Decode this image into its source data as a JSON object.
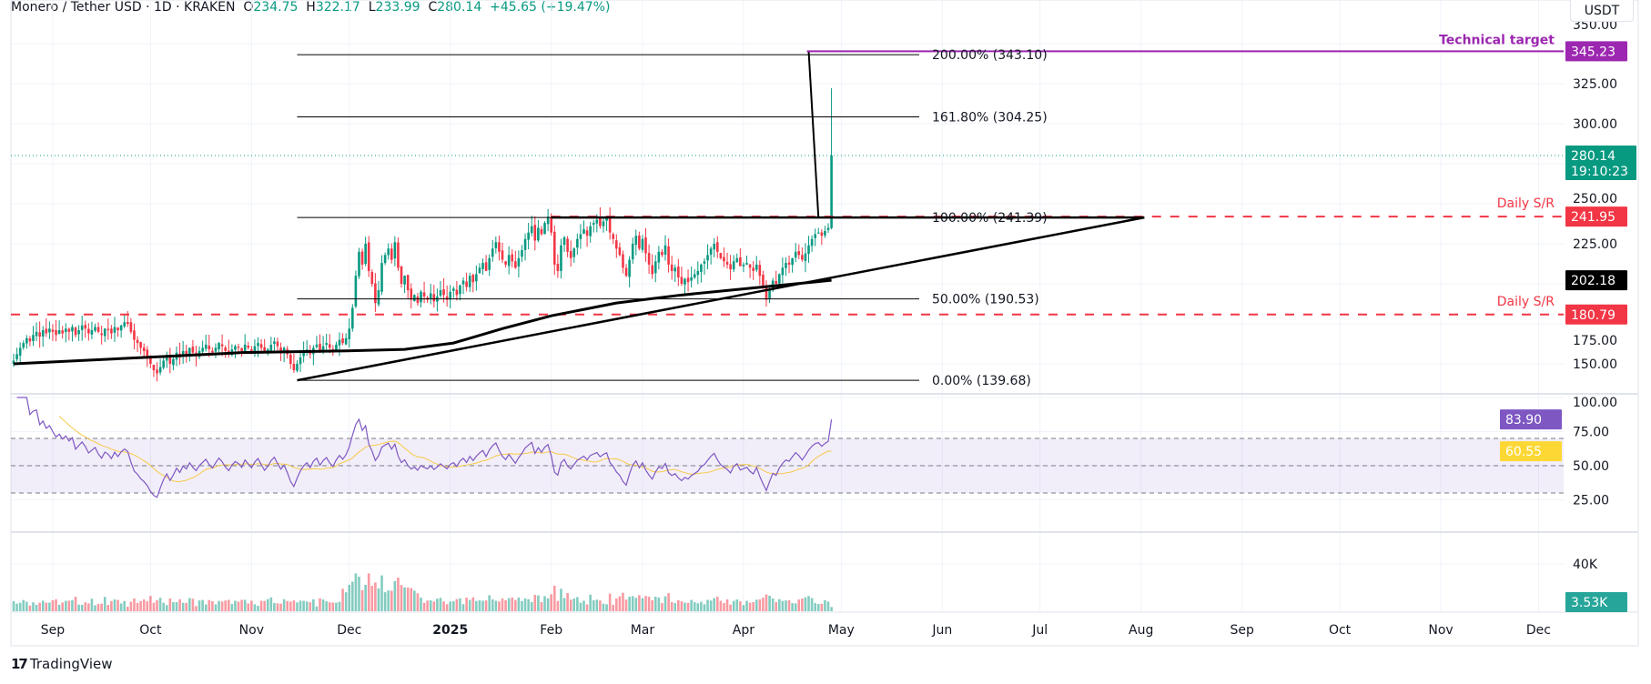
{
  "header": {
    "symbol": "Monero / Tether USD · 1D · KRAKEN",
    "o_label": "O",
    "o": "234.75",
    "h_label": "H",
    "h": "322.17",
    "l_label": "L",
    "l": "233.99",
    "c_label": "C",
    "c": "280.14",
    "change": "+45.65 (+19.47%)"
  },
  "currency": "USDT",
  "branding": "TradingView",
  "chart_data": {
    "type": "candlestick",
    "title": "Monero / Tether USD · 1D · KRAKEN",
    "start_date": "2024-08-20",
    "closes": [
      152,
      156,
      160,
      163,
      166,
      164,
      168,
      170,
      167,
      171,
      169,
      172,
      170,
      168,
      171,
      169,
      172,
      170,
      173,
      168,
      171,
      174,
      172,
      169,
      171,
      173,
      170,
      168,
      172,
      171,
      169,
      173,
      171,
      174,
      176,
      175,
      170,
      165,
      163,
      160,
      158,
      155,
      150,
      146,
      144,
      148,
      152,
      155,
      150,
      153,
      157,
      154,
      158,
      156,
      160,
      157,
      155,
      158,
      160,
      162,
      159,
      157,
      160,
      163,
      161,
      158,
      156,
      159,
      161,
      160,
      158,
      162,
      160,
      158,
      161,
      163,
      160,
      157,
      159,
      162,
      164,
      161,
      158,
      160,
      156,
      150,
      146,
      150,
      154,
      157,
      159,
      156,
      160,
      162,
      158,
      161,
      163,
      160,
      158,
      162,
      165,
      163,
      166,
      172,
      185,
      205,
      220,
      212,
      225,
      208,
      200,
      188,
      196,
      213,
      218,
      222,
      215,
      226,
      210,
      200,
      205,
      196,
      190,
      193,
      188,
      195,
      192,
      190,
      194,
      189,
      192,
      196,
      193,
      190,
      195,
      197,
      193,
      199,
      202,
      198,
      205,
      201,
      206,
      210,
      213,
      208,
      216,
      222,
      226,
      220,
      215,
      212,
      218,
      214,
      210,
      216,
      221,
      228,
      232,
      236,
      227,
      235,
      231,
      238,
      242,
      232,
      212,
      208,
      224,
      229,
      220,
      216,
      222,
      228,
      231,
      234,
      230,
      236,
      238,
      240,
      236,
      239,
      241,
      232,
      228,
      222,
      218,
      210,
      205,
      215,
      225,
      230,
      222,
      228,
      219,
      212,
      206,
      214,
      220,
      218,
      224,
      212,
      208,
      210,
      204,
      200,
      203,
      201,
      204,
      206,
      208,
      212,
      214,
      218,
      222,
      225,
      220,
      216,
      214,
      212,
      209,
      214,
      216,
      211,
      212,
      213,
      210,
      208,
      212,
      205,
      198,
      190,
      196,
      202,
      200,
      206,
      210,
      213,
      212,
      216,
      220,
      218,
      215,
      219,
      224,
      228,
      231,
      232,
      230,
      233,
      235,
      280
    ],
    "last_candle": {
      "open": 234.75,
      "high": 322.17,
      "low": 233.99,
      "close": 280.14,
      "volume": 3530
    },
    "moving_average_200": [
      [
        0,
        150
      ],
      [
        40,
        154
      ],
      [
        70,
        157
      ],
      [
        100,
        158
      ],
      [
        120,
        159
      ],
      [
        135,
        163
      ],
      [
        150,
        172
      ],
      [
        165,
        180
      ],
      [
        185,
        188
      ],
      [
        205,
        193
      ],
      [
        225,
        197
      ],
      [
        240,
        200
      ],
      [
        251,
        202.18
      ]
    ],
    "price_axis": {
      "ticks": [
        "350.00",
        "325.00",
        "300.00",
        "250.00",
        "225.00",
        "175.00",
        "150.00"
      ],
      "tick_values": [
        350,
        325,
        300,
        250,
        225,
        175,
        150
      ]
    },
    "time_axis": [
      {
        "label": "Sep",
        "day": 12
      },
      {
        "label": "Oct",
        "day": 42
      },
      {
        "label": "Nov",
        "day": 73
      },
      {
        "label": "Dec",
        "day": 103
      },
      {
        "label": "2025",
        "day": 134,
        "bold": true
      },
      {
        "label": "Feb",
        "day": 165
      },
      {
        "label": "Mar",
        "day": 193
      },
      {
        "label": "Apr",
        "day": 224
      },
      {
        "label": "May",
        "day": 254
      },
      {
        "label": "Jun",
        "day": 285
      },
      {
        "label": "Jul",
        "day": 315
      },
      {
        "label": "Aug",
        "day": 346
      },
      {
        "label": "Sep",
        "day": 377
      },
      {
        "label": "Oct",
        "day": 407
      },
      {
        "label": "Nov",
        "day": 438
      },
      {
        "label": "Dec",
        "day": 468
      }
    ],
    "fibonacci": [
      {
        "label": "200.00% (343.10)",
        "value": 343.1
      },
      {
        "label": "161.80% (304.25)",
        "value": 304.25
      },
      {
        "label": "100.00% (241.39)",
        "value": 241.39
      },
      {
        "label": "50.00% (190.53)",
        "value": 190.53
      },
      {
        "label": "0.00% (139.68)",
        "value": 139.68
      }
    ],
    "trendline": {
      "from": [
        87,
        139.68
      ],
      "to": [
        347,
        241.39
      ]
    },
    "resistance": {
      "from": [
        165,
        241.39
      ],
      "to": [
        347,
        241.39
      ]
    },
    "projection": {
      "from": [
        247,
        241.39
      ],
      "to": [
        244,
        345.23
      ]
    },
    "annotations": {
      "technical_target": {
        "label": "Technical target",
        "value": 345.23,
        "tag": "345.23",
        "color": "#9c27b0"
      },
      "sr_upper": {
        "label": "Daily S/R",
        "value": 241.95,
        "tag": "241.95",
        "color": "#f23645"
      },
      "sr_lower": {
        "label": "Daily S/R",
        "value": 180.79,
        "tag": "180.79",
        "color": "#f23645"
      },
      "ma_tag": {
        "value": 202.18,
        "tag": "202.18",
        "color": "#000000"
      },
      "last_price": {
        "value": 280.14,
        "tag": "280.14",
        "countdown": "19:10:23",
        "color": "#089981"
      }
    },
    "rsi": {
      "ticks": [
        "100.00",
        "75.00",
        "50.00",
        "25.00"
      ],
      "tick_values": [
        100,
        75,
        50,
        25
      ],
      "value": "83.90",
      "value_num": 83.9,
      "ma": "60.55",
      "ma_num": 60.55,
      "overbought": 70,
      "oversold": 30,
      "line_color": "#7e57c2",
      "ma_color": "#fdd835"
    },
    "volume": {
      "ticks": [
        "40K"
      ],
      "tick_values": [
        40000
      ],
      "last": "3.53K",
      "color": "#26a69a"
    },
    "colors": {
      "up": "#089981",
      "down": "#f23645"
    }
  }
}
